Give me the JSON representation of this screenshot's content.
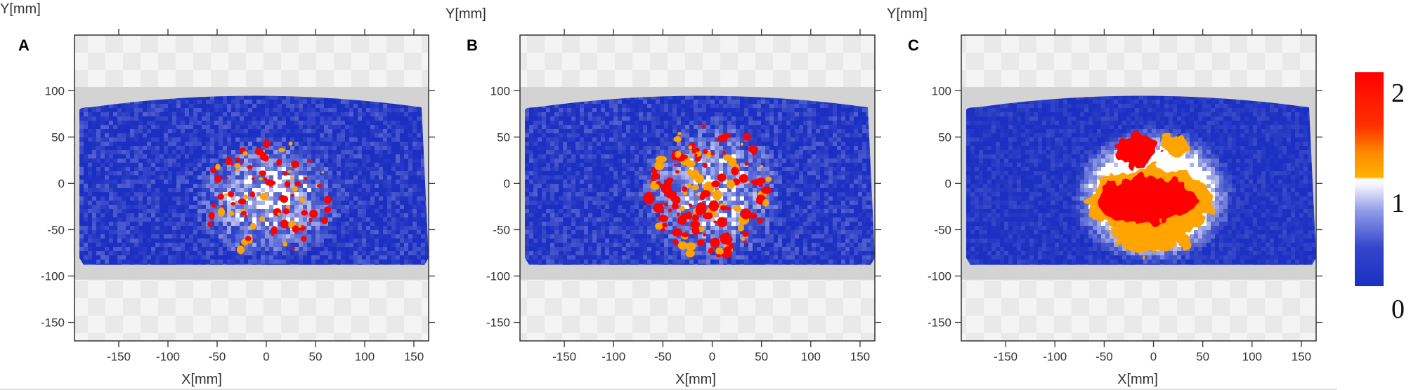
{
  "colors": {
    "low": "#1b2fc2",
    "mid": "#ffffff",
    "high_orange": "#ffa400",
    "high_red": "#ff0000",
    "masked_band": "#d3d3d3",
    "checker_light": "#f4f4f4",
    "checker_dark": "#e9e9e9",
    "frame": "#333333"
  },
  "chart_data": [
    {
      "type": "heatmap",
      "panel": "A",
      "xlabel": "X[mm]",
      "ylabel": "Y[mm]",
      "xlim": [
        -195,
        165
      ],
      "ylim": [
        -170,
        160
      ],
      "xticks": [
        -150,
        -100,
        -50,
        0,
        50,
        100,
        150
      ],
      "yticks": [
        100,
        50,
        0,
        -50,
        -100,
        -150
      ],
      "masked_band_y": [
        -104,
        104
      ],
      "object_extent_x": [
        -190,
        165
      ],
      "object_extent_y": [
        -88,
        104
      ],
      "hotspot_region": {
        "x": [
          -65,
          65
        ],
        "y": [
          -78,
          48
        ]
      },
      "hotspot_peak_value": 2,
      "pattern": "scattered speckles"
    },
    {
      "type": "heatmap",
      "panel": "B",
      "xlabel": "X[mm]",
      "ylabel": "Y[mm]",
      "xlim": [
        -195,
        165
      ],
      "ylim": [
        -170,
        160
      ],
      "xticks": [
        -150,
        -100,
        -50,
        0,
        50,
        100,
        150
      ],
      "yticks": [
        100,
        50,
        0,
        -50,
        -100,
        -150
      ],
      "masked_band_y": [
        -104,
        104
      ],
      "object_extent_x": [
        -190,
        165
      ],
      "object_extent_y": [
        -88,
        104
      ],
      "hotspot_region": {
        "x": [
          -65,
          60
        ],
        "y": [
          -80,
          65
        ]
      },
      "hotspot_peak_value": 2,
      "pattern": "denser speckles"
    },
    {
      "type": "heatmap",
      "panel": "C",
      "xlabel": "X[mm]",
      "ylabel": "Y[mm]",
      "xlim": [
        -195,
        165
      ],
      "ylim": [
        -170,
        160
      ],
      "xticks": [
        -150,
        -100,
        -50,
        0,
        50,
        100,
        150
      ],
      "yticks": [
        100,
        50,
        0,
        -50,
        -100,
        -150
      ],
      "masked_band_y": [
        -104,
        104
      ],
      "object_extent_x": [
        -190,
        165
      ],
      "object_extent_y": [
        -88,
        104
      ],
      "hotspot_region": {
        "x": [
          -70,
          65
        ],
        "y": [
          -78,
          55
        ]
      },
      "hotspot_peak_value": 2,
      "pattern": "continuous blob"
    }
  ],
  "colorbar": {
    "min": 0,
    "max": 2,
    "labels": [
      "2",
      "1",
      "0"
    ],
    "label_values": [
      2,
      1,
      0
    ]
  }
}
